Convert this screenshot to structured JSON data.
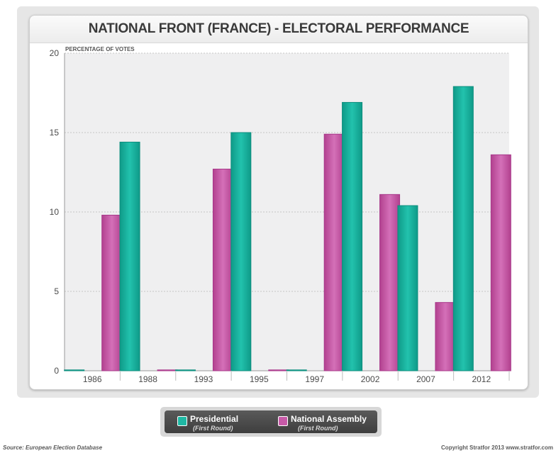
{
  "chart_data": {
    "type": "bar",
    "title": "NATIONAL FRONT (FRANCE) - ELECTORAL PERFORMANCE",
    "ylabel": "PERCENTAGE OF VOTES",
    "xlabel": "",
    "categories": [
      "1986",
      "1988",
      "1993",
      "1995",
      "1997",
      "2002",
      "2007",
      "2012"
    ],
    "ylim": [
      0,
      20
    ],
    "yticks": [
      0,
      5,
      10,
      15,
      20
    ],
    "grid": true,
    "legend_position": "bottom",
    "series": [
      {
        "name": "Presidential",
        "sub": "(First Round)",
        "color": "#1fb8a4",
        "values": [
          0,
          14.4,
          0,
          15.0,
          0,
          16.9,
          10.4,
          17.9
        ]
      },
      {
        "name": "National Assembly",
        "sub": "(First Round)",
        "color": "#c75aa8",
        "values": [
          9.8,
          0,
          12.7,
          0,
          14.9,
          11.1,
          4.3,
          13.6
        ]
      }
    ]
  },
  "footer": {
    "source": "Source: European Election Database",
    "copyright": "Copyright Stratfor 2013  www.stratfor.com"
  }
}
